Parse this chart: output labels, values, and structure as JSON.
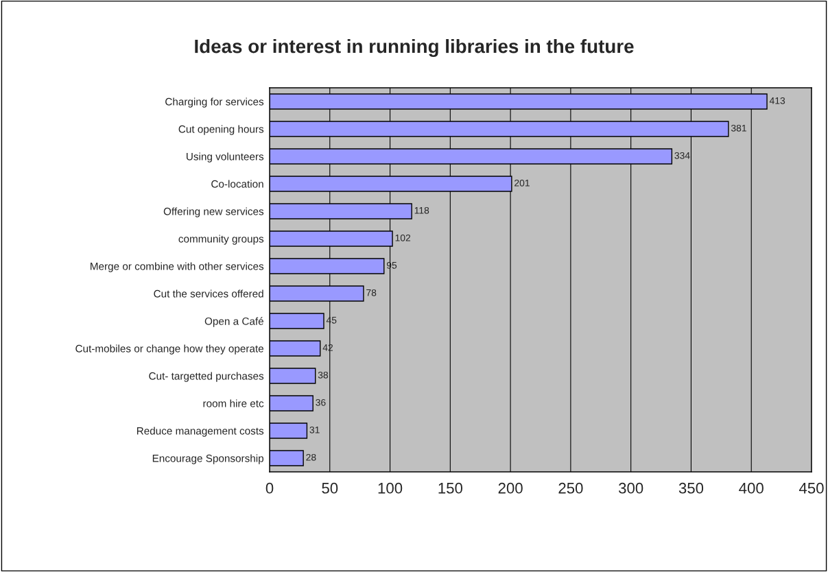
{
  "chart_data": {
    "type": "bar",
    "orientation": "horizontal",
    "title": "Ideas or interest in running libraries in the future",
    "categories": [
      "Charging for services",
      "Cut opening hours",
      "Using volunteers",
      "Co-location",
      "Offering new services",
      "community groups",
      "Merge or combine with other services",
      "Cut the services offered",
      "Open a Café",
      "Cut-mobiles or change how they operate",
      "Cut- targetted purchases",
      "room hire etc",
      "Reduce management costs",
      "Encourage Sponsorship"
    ],
    "values": [
      413,
      381,
      334,
      201,
      118,
      102,
      95,
      78,
      45,
      42,
      38,
      36,
      31,
      28
    ],
    "color": "#9999ff",
    "xlim": [
      0,
      450
    ],
    "xticks": [
      0,
      50,
      100,
      150,
      200,
      250,
      300,
      350,
      400,
      450
    ],
    "grid": "x",
    "data_labels": true
  }
}
